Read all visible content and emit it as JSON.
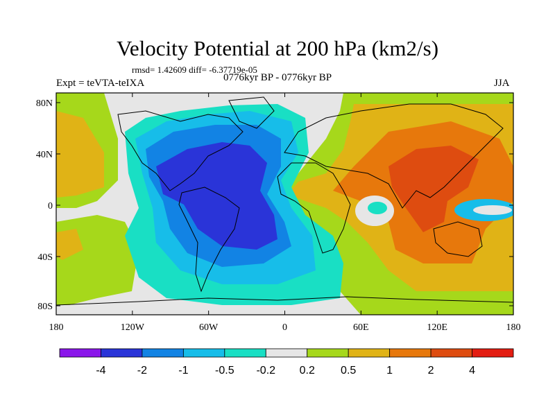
{
  "title": "Velocity Potential at 200 hPa (km2/s)",
  "stats": "rmsd= 1.42609 diff= -6.37719e-05",
  "left_label": "Expt = teVTA-teIXA",
  "center_label": "0776kyr BP - 0776kyr BP",
  "right_label": "JJA",
  "lat_ticks": [
    "80N",
    "40N",
    "0",
    "40S",
    "80S"
  ],
  "lon_ticks": [
    "180",
    "120W",
    "60W",
    "0",
    "60E",
    "120E",
    "180"
  ],
  "colorbar": {
    "labels": [
      "-4",
      "-2",
      "-1",
      "-0.5",
      "-0.2",
      "0.2",
      "0.5",
      "1",
      "2",
      "4"
    ],
    "colors": [
      "#8a16ea",
      "#2a34d8",
      "#1283e4",
      "#17bde9",
      "#19dfc4",
      "#e6e6e6",
      "#a6d81b",
      "#e0b316",
      "#e7780c",
      "#de4c10",
      "#e31d12"
    ]
  }
}
